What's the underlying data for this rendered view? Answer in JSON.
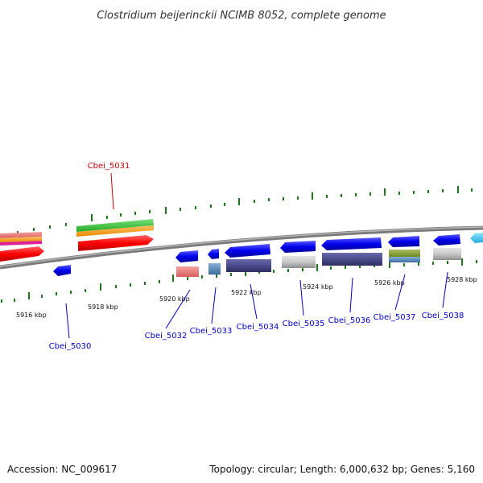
{
  "title": "Clostridium beijerinckii NCIMB 8052, complete genome",
  "footer": {
    "accession": "Accession: NC_009617",
    "summary": "Topology: circular; Length: 6,000,632 bp; Genes: 5,160"
  },
  "scale_labels": [
    "5916 kbp",
    "5918 kbp",
    "5920 kbp",
    "5922 kbp",
    "5924 kbp",
    "5926 kbp",
    "5928 kbp"
  ],
  "genes": [
    {
      "label": "Cbei_5030",
      "strand": "-",
      "color": "#0000cc"
    },
    {
      "label": "Cbei_5031",
      "strand": "+",
      "color": "#cc0000"
    },
    {
      "label": "Cbei_5032",
      "strand": "-",
      "color": "#0000cc"
    },
    {
      "label": "Cbei_5033",
      "strand": "-",
      "color": "#0000cc"
    },
    {
      "label": "Cbei_5034",
      "strand": "-",
      "color": "#0000cc"
    },
    {
      "label": "Cbei_5035",
      "strand": "-",
      "color": "#0000cc"
    },
    {
      "label": "Cbei_5036",
      "strand": "-",
      "color": "#0000cc"
    },
    {
      "label": "Cbei_5037",
      "strand": "-",
      "color": "#0000cc"
    },
    {
      "label": "Cbei_5038",
      "strand": "-",
      "color": "#0000cc"
    }
  ],
  "colors": {
    "backbone": "#808080",
    "forward_cds": "#ff0000",
    "reverse_cds": "#0000ff",
    "tick": "#1a7a1a"
  }
}
